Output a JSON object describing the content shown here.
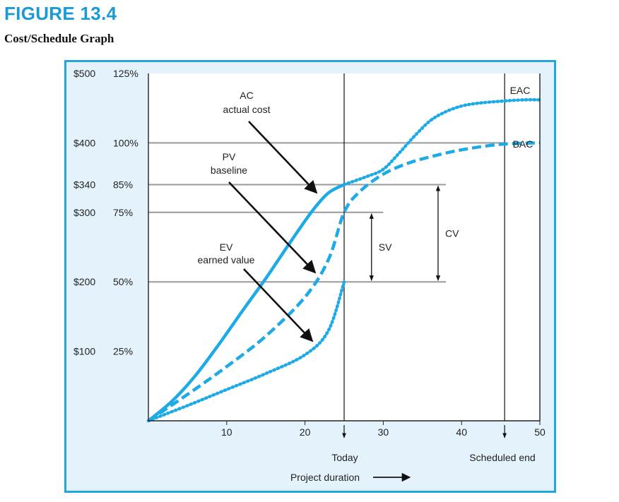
{
  "figure": {
    "number": "FIGURE 13.4",
    "caption": "Cost/Schedule Graph"
  },
  "chart_data": {
    "type": "line",
    "title": "Cost/Schedule Graph",
    "xlabel": "Project duration",
    "xlim": [
      0,
      50
    ],
    "x_ticks": [
      "10",
      "20",
      "30",
      "40",
      "50"
    ],
    "ylim_dollars": [
      0,
      500
    ],
    "y_ticks": [
      {
        "dollars": "$500",
        "percent": "125%",
        "value": 500
      },
      {
        "dollars": "$400",
        "percent": "100%",
        "value": 400
      },
      {
        "dollars": "$340",
        "percent": "85%",
        "value": 340
      },
      {
        "dollars": "$300",
        "percent": "75%",
        "value": 300
      },
      {
        "dollars": "$200",
        "percent": "50%",
        "value": 200
      },
      {
        "dollars": "$100",
        "percent": "25%",
        "value": 100
      }
    ],
    "series": [
      {
        "name": "AC",
        "style": "solid",
        "color": "#1eaae6",
        "x": [
          0,
          3,
          6,
          9,
          12,
          15,
          18,
          21,
          23,
          25
        ],
        "y": [
          0,
          28,
          65,
          110,
          158,
          205,
          255,
          303,
          328,
          340
        ]
      },
      {
        "name": "PV",
        "style": "dashed",
        "color": "#1eaae6",
        "x": [
          0,
          5,
          10,
          15,
          20,
          23,
          25,
          27,
          30,
          33,
          36,
          40,
          45,
          50
        ],
        "y": [
          0,
          38,
          78,
          122,
          178,
          232,
          300,
          330,
          355,
          370,
          380,
          390,
          398,
          400
        ]
      },
      {
        "name": "EV",
        "style": "dotted",
        "color": "#1eaae6",
        "x": [
          0,
          5,
          10,
          15,
          20,
          23,
          25
        ],
        "y": [
          0,
          22,
          45,
          68,
          95,
          130,
          200
        ]
      },
      {
        "name": "EAC projection",
        "style": "dotted",
        "color": "#1eaae6",
        "x": [
          25,
          28,
          30,
          32,
          34,
          36,
          38,
          40,
          42,
          45,
          48,
          50
        ],
        "y": [
          340,
          352,
          362,
          385,
          410,
          432,
          445,
          453,
          457,
          460,
          462,
          462
        ]
      }
    ],
    "reference_lines": {
      "vertical": [
        {
          "x": 25,
          "label": "Today"
        },
        {
          "x": 45.5,
          "label": "Scheduled end"
        }
      ],
      "horizontal": [
        {
          "y": 400,
          "x_end": 45.5,
          "label": "BAC"
        },
        {
          "y": 340,
          "x_end": 38
        },
        {
          "y": 300,
          "x_end": 30
        },
        {
          "y": 200,
          "x_end": 38
        }
      ]
    },
    "variance_brackets": [
      {
        "label": "SV",
        "x": 28.5,
        "from": 300,
        "to": 200
      },
      {
        "label": "CV",
        "x": 37,
        "from": 340,
        "to": 200
      }
    ],
    "annotations": [
      {
        "id": "ac",
        "lines": [
          "AC",
          "actual cost"
        ]
      },
      {
        "id": "pv",
        "lines": [
          "PV",
          "baseline"
        ]
      },
      {
        "id": "ev",
        "lines": [
          "EV",
          "earned value"
        ]
      },
      {
        "id": "eac",
        "lines": [
          "EAC"
        ]
      },
      {
        "id": "bac",
        "lines": [
          "BAC"
        ]
      }
    ]
  }
}
